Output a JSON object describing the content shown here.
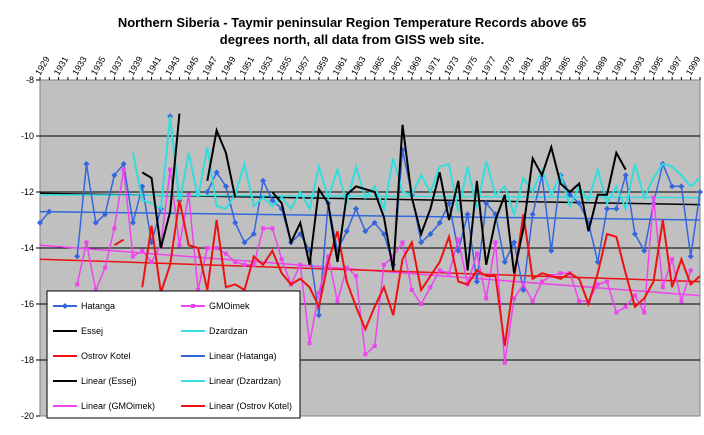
{
  "chart_data": {
    "type": "line",
    "title_line1": "Northern Siberia -  Taymir peninsular Region Temperature Records above 65",
    "title_line2": "degrees north, all data from GISS web site.",
    "ylim": [
      -20,
      -8
    ],
    "yticks": [
      "-8",
      "-10",
      "-12",
      "-14",
      "-16",
      "-18",
      "-20"
    ],
    "xlim": [
      1929,
      2000
    ],
    "xticks": [
      "1929",
      "1931",
      "1933",
      "1935",
      "1937",
      "1939",
      "1941",
      "1943",
      "1945",
      "1947",
      "1949",
      "1951",
      "1953",
      "1955",
      "1957",
      "1959",
      "1961",
      "1963",
      "1965",
      "1967",
      "1969",
      "1971",
      "1973",
      "1975",
      "1977",
      "1979",
      "1981",
      "1983",
      "1985",
      "1987",
      "1989",
      "1991",
      "1993",
      "1995",
      "1997",
      "1999"
    ],
    "grid": true,
    "legend_position": "bottom-left",
    "x": [
      1929,
      1930,
      1931,
      1932,
      1933,
      1934,
      1935,
      1936,
      1937,
      1938,
      1939,
      1940,
      1941,
      1942,
      1943,
      1944,
      1945,
      1946,
      1947,
      1948,
      1949,
      1950,
      1951,
      1952,
      1953,
      1954,
      1955,
      1956,
      1957,
      1958,
      1959,
      1960,
      1961,
      1962,
      1963,
      1964,
      1965,
      1966,
      1967,
      1968,
      1969,
      1970,
      1971,
      1972,
      1973,
      1974,
      1975,
      1976,
      1977,
      1978,
      1979,
      1980,
      1981,
      1982,
      1983,
      1984,
      1985,
      1986,
      1987,
      1988,
      1989,
      1990,
      1991,
      1992,
      1993,
      1994,
      1995,
      1996,
      1997,
      1998,
      1999,
      2000
    ],
    "series": [
      {
        "name": "Hatanga",
        "color": "#3366dd",
        "marker": "diamond",
        "values": [
          -13.1,
          -12.7,
          null,
          null,
          -14.3,
          -11.0,
          -13.1,
          -12.8,
          -11.4,
          -11.0,
          -13.1,
          -11.8,
          -13.8,
          -12.6,
          -9.3,
          -12.3,
          null,
          null,
          -12.0,
          -11.3,
          -11.8,
          -13.1,
          -13.8,
          -13.5,
          -11.6,
          -12.3,
          -12.6,
          -13.8,
          -13.5,
          -14.1,
          -16.4,
          -12.4,
          -14.1,
          -13.4,
          -12.6,
          -13.4,
          -13.1,
          -13.5,
          -14.6,
          -10.5,
          -12.1,
          -13.8,
          -13.5,
          -13.1,
          -12.4,
          -14.1,
          -12.8,
          -15.2,
          -12.4,
          -12.8,
          -14.5,
          -13.8,
          -15.5,
          -12.8,
          -11.4,
          -14.1,
          -11.4,
          -12.1,
          -12.4,
          -13.1,
          -14.5,
          -12.6,
          -12.6,
          -11.4,
          -13.5,
          -14.1,
          -12.4,
          -11.0,
          -11.8,
          -11.8,
          -14.3,
          -12.0
        ]
      },
      {
        "name": "GMOimek",
        "color": "#ee44ee",
        "marker": "square",
        "values": [
          null,
          null,
          null,
          null,
          -15.3,
          -13.8,
          -15.5,
          -14.7,
          -13.3,
          -11.2,
          -14.3,
          -14.1,
          -14.5,
          -13.9,
          -11.2,
          -13.9,
          -12.1,
          -15.5,
          -14.0,
          -14.0,
          -14.2,
          -14.5,
          -14.6,
          -14.6,
          -13.3,
          -13.3,
          -14.4,
          -15.3,
          -14.6,
          -17.4,
          -15.6,
          -14.3,
          -15.9,
          -14.7,
          -15.0,
          -17.8,
          -17.5,
          -14.6,
          -14.3,
          -13.8,
          -15.5,
          -16.0,
          -15.4,
          -14.8,
          -14.9,
          -13.7,
          -15.3,
          -14.2,
          -15.8,
          -13.8,
          -18.1,
          -15.8,
          -15.3,
          -15.9,
          -15.2,
          -15.0,
          -14.9,
          -14.9,
          -15.9,
          -15.9,
          -15.3,
          -15.2,
          -16.3,
          -16.1,
          -15.7,
          -16.3,
          -12.2,
          -15.4,
          -14.4,
          -15.9,
          -14.8,
          null
        ]
      },
      {
        "name": "Essej",
        "color": "#000000",
        "marker": "none",
        "values": [
          null,
          null,
          null,
          null,
          null,
          null,
          null,
          null,
          null,
          null,
          null,
          -11.3,
          -11.5,
          -14.0,
          -12.7,
          -9.2,
          null,
          null,
          -11.6,
          -9.8,
          -10.6,
          -12.2,
          null,
          null,
          null,
          -12.0,
          -12.4,
          -13.8,
          -13.1,
          -14.6,
          -11.9,
          -12.4,
          -14.5,
          -12.1,
          -11.8,
          -11.9,
          -12.0,
          -12.9,
          -14.8,
          -9.6,
          -12.2,
          -13.5,
          -12.6,
          -11.3,
          -13.0,
          -11.6,
          -14.8,
          -11.6,
          -14.6,
          -13.0,
          -12.1,
          -14.9,
          -13.3,
          -10.8,
          -11.4,
          -10.4,
          -11.7,
          -12.0,
          -11.7,
          -13.4,
          -12.1,
          -12.1,
          -10.6,
          -11.2,
          null,
          null,
          null,
          null,
          null,
          null,
          null,
          null
        ]
      },
      {
        "name": "Dzardzan",
        "color": "#33dddd",
        "marker": "none",
        "values": [
          null,
          null,
          null,
          null,
          null,
          null,
          null,
          null,
          null,
          null,
          -10.6,
          -12.3,
          -12.4,
          -12.6,
          -9.3,
          -12.4,
          -10.6,
          -12.2,
          -10.4,
          -12.5,
          -12.6,
          -12.1,
          -11.0,
          -12.5,
          -12.2,
          -12.5,
          -12.2,
          -12.6,
          -12.0,
          -12.6,
          -11.1,
          -12.2,
          -11.2,
          -12.4,
          -11.1,
          -12.2,
          -11.8,
          -12.6,
          -10.8,
          -12.0,
          -12.1,
          -11.4,
          -12.0,
          -11.1,
          -11.0,
          -12.7,
          -11.1,
          -12.6,
          -10.9,
          -12.1,
          -11.8,
          -12.8,
          -11.5,
          -12.0,
          -11.2,
          -12.1,
          -11.4,
          -12.5,
          -11.8,
          -12.3,
          -11.2,
          -12.4,
          -11.8,
          -12.6,
          -11.0,
          -12.2,
          -11.5,
          -11.0,
          -11.1,
          -11.4,
          -11.8,
          -11.5
        ]
      },
      {
        "name": "Ostrov Kotel",
        "color": "#ee1111",
        "marker": "none",
        "values": [
          null,
          null,
          null,
          null,
          null,
          null,
          null,
          null,
          -13.9,
          -13.7,
          null,
          -15.4,
          -13.2,
          -15.6,
          -14.6,
          -12.3,
          -13.9,
          -14.0,
          -15.5,
          -13.0,
          -15.4,
          -15.3,
          -15.5,
          -14.3,
          -14.6,
          -14.1,
          -14.9,
          -15.3,
          -15.1,
          -15.4,
          -16.1,
          -14.5,
          -13.4,
          -15.2,
          -16.1,
          -16.9,
          -16.1,
          -15.4,
          -16.4,
          -14.4,
          -13.8,
          -15.5,
          -15.0,
          -14.5,
          -13.6,
          -15.2,
          -15.3,
          -14.8,
          -15.0,
          -15.0,
          -17.5,
          -15.1,
          -12.8,
          -15.1,
          -14.9,
          -15.0,
          -15.1,
          -14.9,
          -15.1,
          -16.0,
          -14.9,
          -13.5,
          -13.6,
          -14.9,
          -16.1,
          -15.8,
          -15.2,
          -13.0,
          -15.4,
          -14.4,
          -15.3,
          -15.0
        ]
      }
    ],
    "trendlines": [
      {
        "name": "Linear (Hatanga)",
        "color": "#3366dd",
        "start": [
          1929,
          -12.7
        ],
        "end": [
          2000,
          -13.0
        ]
      },
      {
        "name": "Linear (Essej)",
        "color": "#000000",
        "start": [
          1929,
          -12.05
        ],
        "end": [
          2000,
          -12.45
        ]
      },
      {
        "name": "Linear (Dzardzan)",
        "color": "#33dddd",
        "start": [
          1929,
          -12.1
        ],
        "end": [
          2000,
          -12.2
        ]
      },
      {
        "name": "Linear (GMOimek)",
        "color": "#ee44ee",
        "start": [
          1929,
          -13.9
        ],
        "end": [
          2000,
          -15.7
        ]
      },
      {
        "name": "Linear (Ostrov Kotel)",
        "color": "#ee1111",
        "start": [
          1929,
          -14.4
        ],
        "end": [
          2000,
          -15.2
        ]
      }
    ],
    "legend_entries": [
      {
        "label": "Hatanga",
        "color": "#3366dd",
        "marker": "diamond"
      },
      {
        "label": "GMOimek",
        "color": "#ee44ee",
        "marker": "square"
      },
      {
        "label": "Essej",
        "color": "#000000",
        "marker": "none"
      },
      {
        "label": "Dzardzan",
        "color": "#33dddd",
        "marker": "none"
      },
      {
        "label": "Ostrov Kotel",
        "color": "#ee1111",
        "marker": "none"
      },
      {
        "label": "Linear (Hatanga)",
        "color": "#3366dd",
        "marker": "none"
      },
      {
        "label": "Linear (Essej)",
        "color": "#000000",
        "marker": "none"
      },
      {
        "label": "Linear (Dzardzan)",
        "color": "#33dddd",
        "marker": "none"
      },
      {
        "label": "Linear (GMOimek)",
        "color": "#ee44ee",
        "marker": "none"
      },
      {
        "label": "Linear (Ostrov Kotel)",
        "color": "#ee1111",
        "marker": "none"
      }
    ],
    "plot_background": "#c0c0c0"
  }
}
